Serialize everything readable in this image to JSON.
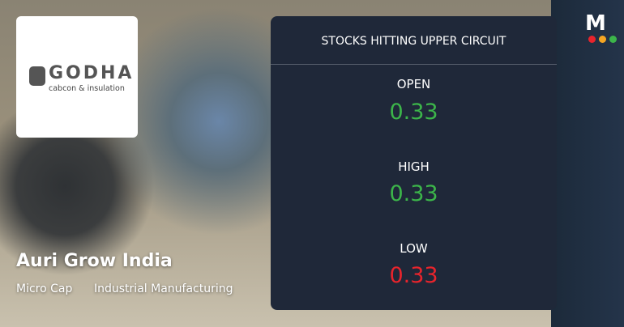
{
  "brand": "M",
  "logo": {
    "name": "GODHA",
    "tagline": "cabcon & insulation"
  },
  "company": {
    "name": "Auri Grow India",
    "tags": [
      "Micro Cap",
      "Industrial Manufacturing"
    ]
  },
  "panel": {
    "title": "STOCKS HITTING UPPER CIRCUIT",
    "rows": [
      {
        "label": "OPEN",
        "value": "0.33"
      },
      {
        "label": "HIGH",
        "value": "0.33"
      },
      {
        "label": "LOW",
        "value": "0.33"
      }
    ]
  }
}
